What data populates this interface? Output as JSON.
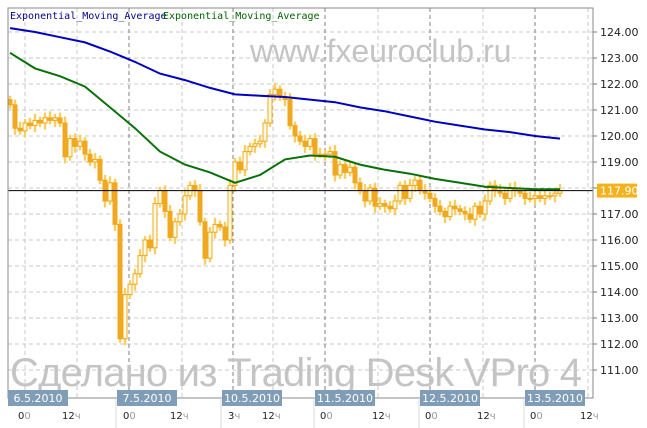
{
  "watermarks": {
    "top": "www.fxeuroclub.ru",
    "bottom": "Сделано из Trading Desk VPro 4"
  },
  "legend": [
    {
      "label": "Exponential_Moving_Average",
      "color": "#00008b"
    },
    {
      "label": "Exponential_Moving_Average",
      "color": "#006400"
    }
  ],
  "colors": {
    "candle": "#f0a820",
    "candle_glow": "#fff2b0",
    "ema_slow": "#0000c0",
    "ema_fast": "#087008",
    "price_line": "#000000",
    "price_label_bg": "#f5b21c",
    "date_label_bg": "#7f9db6",
    "grid": "#c8c8c8",
    "grid_day": "#808080"
  },
  "chart_data": {
    "type": "candlestick",
    "title": "",
    "ylim": [
      110.6,
      124.9
    ],
    "y_ticks": [
      "124.00",
      "123.00",
      "122.00",
      "121.00",
      "120.00",
      "119.00",
      "118.00",
      "117.00",
      "116.00",
      "115.00",
      "114.00",
      "113.00",
      "112.00",
      "111.00"
    ],
    "y_tick_values": [
      124,
      123,
      122,
      121,
      120,
      119,
      118,
      117,
      116,
      115,
      114,
      113,
      112,
      111
    ],
    "grid": true,
    "current_price": {
      "value": 117.9,
      "label": "117.90"
    },
    "x_date_labels": [
      "6.5.2010",
      "7.5.2010",
      "10.5.2010",
      "11.5.2010",
      "12.5.2010",
      "13.5.2010"
    ],
    "x_hour_labels": [
      [
        {
          "a": "0",
          "b": "0"
        },
        {
          "a": "12",
          "b": "ч"
        }
      ],
      [
        {
          "a": "0",
          "b": "0"
        },
        {
          "a": "12",
          "b": "ч"
        }
      ],
      [
        {
          "a": "3",
          "b": "ч"
        },
        {
          "a": "12",
          "b": "ч"
        }
      ],
      [
        {
          "a": "0",
          "b": "0"
        },
        {
          "a": "12",
          "b": "ч"
        }
      ],
      [
        {
          "a": "0",
          "b": "0"
        },
        {
          "a": "12",
          "b": "ч"
        }
      ],
      [
        {
          "a": "0",
          "b": "0"
        },
        {
          "a": "12",
          "b": "ч"
        }
      ]
    ],
    "closes": [
      121.2,
      120.3,
      120.2,
      120.5,
      120.4,
      120.6,
      120.5,
      120.7,
      120.6,
      120.7,
      120.5,
      119.2,
      119.9,
      119.6,
      119.8,
      119.3,
      119.0,
      119.1,
      118.3,
      117.5,
      118.2,
      116.6,
      112.2,
      113.9,
      114.3,
      114.7,
      115.4,
      116.0,
      115.7,
      117.4,
      117.9,
      117.1,
      116.1,
      116.7,
      117.0,
      117.7,
      118.1,
      117.9,
      116.7,
      115.3,
      116.3,
      116.6,
      116.5,
      116.0,
      118.1,
      119.0,
      118.7,
      119.4,
      119.6,
      119.7,
      119.8,
      120.5,
      121.6,
      121.8,
      121.5,
      121.4,
      120.4,
      120.0,
      119.8,
      119.6,
      119.9,
      119.3,
      119.3,
      119.3,
      119.4,
      118.5,
      118.9,
      118.6,
      118.8,
      118.2,
      117.9,
      117.5,
      118.0,
      117.3,
      117.4,
      117.3,
      117.2,
      117.5,
      118.1,
      117.6,
      118.1,
      118.3,
      117.9,
      117.8,
      117.6,
      117.3,
      117.1,
      116.9,
      117.3,
      117.2,
      117.1,
      117.0,
      116.8,
      117.3,
      117.0,
      117.5,
      118.1,
      117.9,
      117.8,
      117.6,
      118.0,
      117.9,
      117.8,
      117.6,
      117.6,
      117.7,
      117.6,
      117.7,
      117.7,
      117.8,
      117.9
    ],
    "series": [
      {
        "name": "Exponential_Moving_Average",
        "values": [
          124.15,
          124.0,
          123.8,
          123.6,
          123.25,
          122.85,
          122.4,
          122.15,
          121.85,
          121.6,
          121.55,
          121.5,
          121.4,
          121.3,
          121.1,
          120.95,
          120.75,
          120.55,
          120.4,
          120.25,
          120.15,
          120.0,
          119.9
        ]
      },
      {
        "name": "Exponential_Moving_Average",
        "values": [
          123.2,
          122.6,
          122.3,
          121.9,
          121.1,
          120.3,
          119.4,
          118.9,
          118.6,
          118.2,
          118.5,
          119.1,
          119.25,
          119.2,
          118.9,
          118.7,
          118.55,
          118.35,
          118.2,
          118.05,
          118.0,
          117.95,
          117.95
        ]
      }
    ]
  }
}
